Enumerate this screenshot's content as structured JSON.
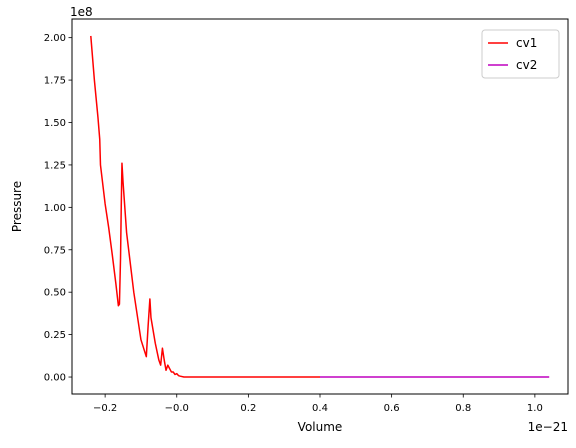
{
  "chart_data": {
    "type": "line",
    "title": "",
    "xlabel": "Volume",
    "ylabel": "Pressure",
    "x_offset_label": "1e−21",
    "y_offset_label": "1e8",
    "xlim": [
      -0.2925,
      1.0925
    ],
    "ylim": [
      -0.1,
      2.11
    ],
    "xticks": [
      {
        "value": -0.2,
        "label": "−0.2"
      },
      {
        "value": 0.0,
        "label": "−0.0"
      },
      {
        "value": 0.2,
        "label": "0.2"
      },
      {
        "value": 0.4,
        "label": "0.4"
      },
      {
        "value": 0.6,
        "label": "0.6"
      },
      {
        "value": 0.8,
        "label": "0.8"
      },
      {
        "value": 1.0,
        "label": "1.0"
      }
    ],
    "yticks": [
      {
        "value": 0.0,
        "label": "0.00"
      },
      {
        "value": 0.25,
        "label": "0.25"
      },
      {
        "value": 0.5,
        "label": "0.50"
      },
      {
        "value": 0.75,
        "label": "0.75"
      },
      {
        "value": 1.0,
        "label": "1.00"
      },
      {
        "value": 1.25,
        "label": "1.25"
      },
      {
        "value": 1.5,
        "label": "1.50"
      },
      {
        "value": 1.75,
        "label": "1.75"
      },
      {
        "value": 2.0,
        "label": "2.00"
      }
    ],
    "grid": false,
    "legend_position": "top-right",
    "series": [
      {
        "name": "cv1",
        "color": "#ff0000",
        "x": [
          -0.24,
          -0.23,
          -0.22,
          -0.215,
          -0.213,
          -0.2,
          -0.19,
          -0.18,
          -0.17,
          -0.163,
          -0.16,
          -0.157,
          -0.155,
          -0.153,
          -0.15,
          -0.14,
          -0.12,
          -0.1,
          -0.085,
          -0.08,
          -0.075,
          -0.072,
          -0.06,
          -0.05,
          -0.045,
          -0.04,
          -0.035,
          -0.03,
          -0.025,
          -0.02,
          -0.015,
          -0.01,
          -0.005,
          0.0,
          0.005,
          0.01,
          0.02,
          0.1,
          0.2,
          0.3,
          0.4
        ],
        "y": [
          2.01,
          1.75,
          1.53,
          1.4,
          1.25,
          1.02,
          0.88,
          0.72,
          0.55,
          0.42,
          0.43,
          0.7,
          1.0,
          1.26,
          1.15,
          0.85,
          0.5,
          0.22,
          0.12,
          0.3,
          0.46,
          0.35,
          0.2,
          0.1,
          0.07,
          0.17,
          0.1,
          0.04,
          0.07,
          0.05,
          0.03,
          0.03,
          0.015,
          0.02,
          0.008,
          0.005,
          0.0,
          0.0,
          0.0,
          0.0,
          0.0
        ]
      },
      {
        "name": "cv2",
        "color": "#bf00bf",
        "x": [
          0.4,
          0.6,
          0.8,
          1.0,
          1.04
        ],
        "y": [
          0.0,
          0.0,
          0.0,
          0.0,
          0.0
        ]
      }
    ]
  }
}
